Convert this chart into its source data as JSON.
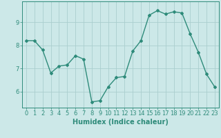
{
  "xlabel": "Humidex (Indice chaleur)",
  "ylabel": "",
  "x_values": [
    0,
    1,
    2,
    3,
    4,
    5,
    6,
    7,
    8,
    9,
    10,
    11,
    12,
    13,
    14,
    15,
    16,
    17,
    18,
    19,
    20,
    21,
    22,
    23
  ],
  "y_values": [
    8.2,
    8.2,
    7.8,
    6.8,
    7.1,
    7.15,
    7.55,
    7.4,
    5.55,
    5.6,
    6.2,
    6.6,
    6.65,
    7.75,
    8.2,
    9.3,
    9.5,
    9.35,
    9.45,
    9.4,
    8.5,
    7.7,
    6.75,
    6.2
  ],
  "line_color": "#2e8b7a",
  "marker": "D",
  "marker_size": 2.0,
  "bg_color": "#cce8e8",
  "grid_color": "#aacece",
  "axis_color": "#2e8b7a",
  "tick_color": "#2e8b7a",
  "label_color": "#2e8b7a",
  "ylim": [
    5.3,
    9.9
  ],
  "xlim": [
    -0.5,
    23.5
  ],
  "yticks": [
    6,
    7,
    8,
    9
  ],
  "xticks": [
    0,
    1,
    2,
    3,
    4,
    5,
    6,
    7,
    8,
    9,
    10,
    11,
    12,
    13,
    14,
    15,
    16,
    17,
    18,
    19,
    20,
    21,
    22,
    23
  ],
  "xlabel_fontsize": 7,
  "tick_fontsize": 6,
  "line_width": 1.0
}
